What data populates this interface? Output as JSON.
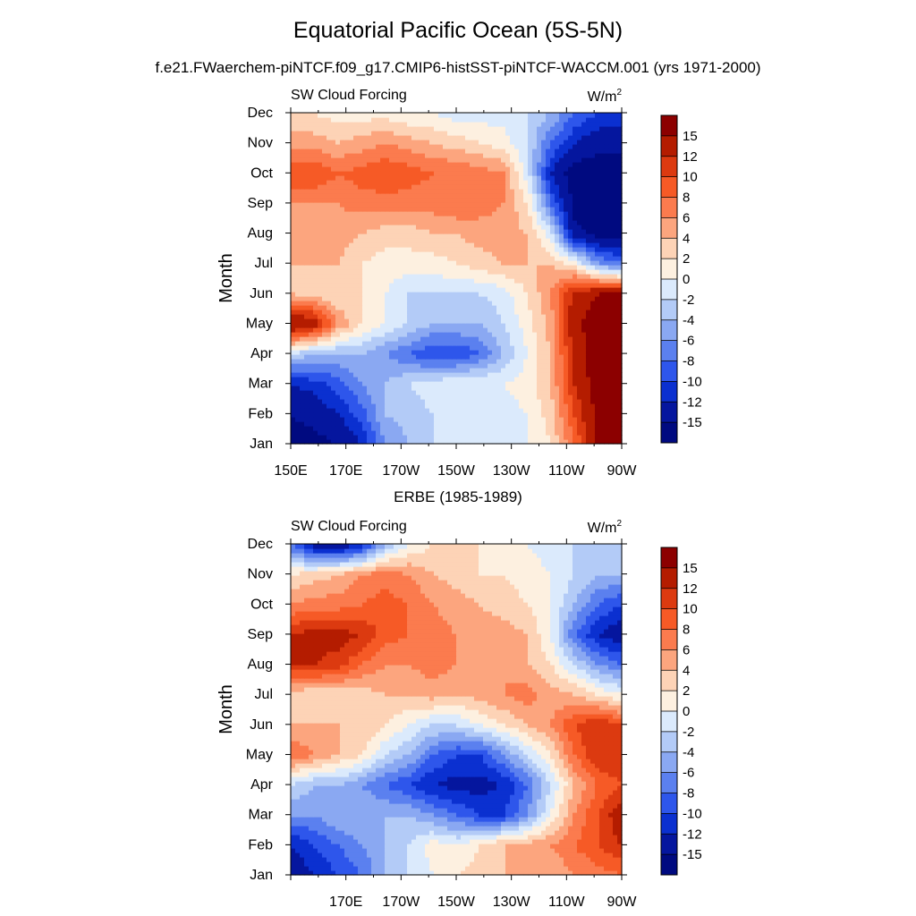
{
  "title": "Equatorial Pacific Ocean (5S-5N)",
  "subtitle": "f.e21.FWaerchem-piNTCF.f09_g17.CMIP6-histSST-piNTCF-WACCM.001 (yrs 1971-2000)",
  "chart_data": [
    {
      "type": "heatmap",
      "panel_title": "",
      "left_label": "SW Cloud Forcing",
      "right_label": "W/m",
      "right_label_sup": "2",
      "ylabel": "Month",
      "yticks": [
        "Jan",
        "Feb",
        "Mar",
        "Apr",
        "May",
        "Jun",
        "Jul",
        "Aug",
        "Sep",
        "Oct",
        "Nov",
        "Dec"
      ],
      "xticks": [
        "150E",
        "170E",
        "170W",
        "150W",
        "130W",
        "110W",
        "90W"
      ],
      "x_range_deg_east": [
        150,
        270
      ],
      "levels": [
        "15",
        "12",
        "10",
        "8",
        "6",
        "4",
        "2",
        "0",
        "-2",
        "-4",
        "-6",
        "-8",
        "-10",
        "-12",
        "-15"
      ],
      "colors": [
        "#8c0000",
        "#b41c00",
        "#dc3a10",
        "#f65a26",
        "#fb7b4e",
        "#fca57e",
        "#fdd3b6",
        "#fdf0e0",
        "#dbeafc",
        "#b3cbf7",
        "#8aa8f2",
        "#5b80ef",
        "#2e56eb",
        "#0b30d0",
        "#05169e",
        "#000a80"
      ],
      "grid": [
        [
          -16,
          -16,
          -15,
          -12,
          -6,
          -4,
          -2,
          -2,
          -2,
          -2,
          0,
          2,
          8,
          16,
          17
        ],
        [
          -15,
          -14,
          -12,
          -9,
          -4,
          -3,
          -2,
          -1,
          0,
          -1,
          0,
          3,
          10,
          16,
          17
        ],
        [
          -12,
          -11,
          -9,
          -6,
          -4,
          -2,
          -1,
          0,
          0,
          0,
          1,
          4,
          12,
          17,
          17
        ],
        [
          -2,
          -4,
          -4,
          -4,
          -6,
          -8,
          -10,
          -10,
          -8,
          -4,
          0,
          4,
          13,
          17,
          17
        ],
        [
          16,
          14,
          6,
          2,
          0,
          -2,
          -4,
          -4,
          -4,
          -2,
          1,
          5,
          14,
          17,
          17
        ],
        [
          4,
          3,
          2,
          2,
          0,
          -2,
          -2,
          -2,
          -2,
          -1,
          2,
          6,
          13,
          15,
          15
        ],
        [
          4,
          4,
          4,
          2,
          1,
          1,
          1,
          2,
          3,
          4,
          4,
          4,
          1,
          -6,
          -8
        ],
        [
          5,
          5,
          5,
          4,
          3,
          3,
          4,
          4,
          5,
          5,
          4,
          -1,
          -14,
          -16,
          -16
        ],
        [
          6,
          6,
          6,
          7,
          7,
          7,
          7,
          8,
          7,
          6,
          2,
          -8,
          -16,
          -17,
          -17
        ],
        [
          10,
          10,
          8,
          9,
          10,
          9,
          8,
          8,
          7,
          6,
          -1,
          -12,
          -17,
          -17,
          -17
        ],
        [
          5,
          5,
          4,
          5,
          6,
          5,
          4,
          3,
          2,
          1,
          -2,
          -8,
          -12,
          -14,
          -14
        ],
        [
          2,
          2,
          1,
          1,
          1,
          0,
          0,
          -1,
          -1,
          -1,
          -2,
          -4,
          -8,
          -10,
          -10
        ]
      ]
    },
    {
      "type": "heatmap",
      "panel_title": "ERBE (1985-1989)",
      "left_label": "SW Cloud Forcing",
      "right_label": "W/m",
      "right_label_sup": "2",
      "ylabel": "Month",
      "yticks": [
        "Jan",
        "Feb",
        "Mar",
        "Apr",
        "May",
        "Jun",
        "Jul",
        "Aug",
        "Sep",
        "Oct",
        "Nov",
        "Dec"
      ],
      "xticks": [
        "",
        "170E",
        "170W",
        "150W",
        "130W",
        "110W",
        "90W"
      ],
      "x_range_deg_east": [
        150,
        270
      ],
      "levels": [
        "15",
        "12",
        "10",
        "8",
        "6",
        "4",
        "2",
        "0",
        "-2",
        "-4",
        "-6",
        "-8",
        "-10",
        "-12",
        "-15"
      ],
      "colors": [
        "#8c0000",
        "#b41c00",
        "#dc3a10",
        "#f65a26",
        "#fb7b4e",
        "#fca57e",
        "#fdd3b6",
        "#fdf0e0",
        "#dbeafc",
        "#b3cbf7",
        "#8aa8f2",
        "#5b80ef",
        "#2e56eb",
        "#0b30d0",
        "#05169e",
        "#000a80"
      ],
      "grid": [
        [
          -14,
          -12,
          -10,
          -8,
          -4,
          -2,
          0,
          2,
          3,
          4,
          5,
          4,
          6,
          7,
          8
        ],
        [
          -12,
          -10,
          -8,
          -6,
          -4,
          -2,
          1,
          0,
          2,
          4,
          5,
          6,
          8,
          10,
          12
        ],
        [
          -6,
          -6,
          -4,
          -4,
          -4,
          -4,
          -6,
          -8,
          -10,
          -10,
          -6,
          0,
          6,
          10,
          14
        ],
        [
          -2,
          -4,
          -4,
          -6,
          -8,
          -10,
          -12,
          -13,
          -13,
          -12,
          -8,
          -2,
          4,
          8,
          10
        ],
        [
          8,
          6,
          4,
          2,
          -2,
          -4,
          -8,
          -10,
          -10,
          -6,
          -2,
          2,
          8,
          12,
          12
        ],
        [
          4,
          4,
          4,
          4,
          2,
          0,
          -2,
          -2,
          0,
          2,
          4,
          6,
          10,
          12,
          10
        ],
        [
          3,
          2,
          2,
          3,
          4,
          4,
          5,
          4,
          5,
          6,
          7,
          5,
          4,
          2,
          0
        ],
        [
          12,
          12,
          11,
          8,
          6,
          6,
          7,
          6,
          6,
          6,
          4,
          2,
          -2,
          -6,
          -8
        ],
        [
          12,
          13,
          13,
          12,
          9,
          8,
          7,
          6,
          5,
          5,
          4,
          0,
          -8,
          -12,
          -14
        ],
        [
          6,
          7,
          7,
          8,
          9,
          8,
          6,
          5,
          4,
          3,
          2,
          0,
          -4,
          -8,
          -10
        ],
        [
          2,
          3,
          4,
          6,
          7,
          6,
          4,
          3,
          2,
          2,
          1,
          0,
          -2,
          -4,
          -4
        ],
        [
          -8,
          -14,
          -15,
          -12,
          -4,
          0,
          2,
          2,
          2,
          1,
          0,
          -1,
          -2,
          -2,
          -2
        ]
      ]
    }
  ]
}
